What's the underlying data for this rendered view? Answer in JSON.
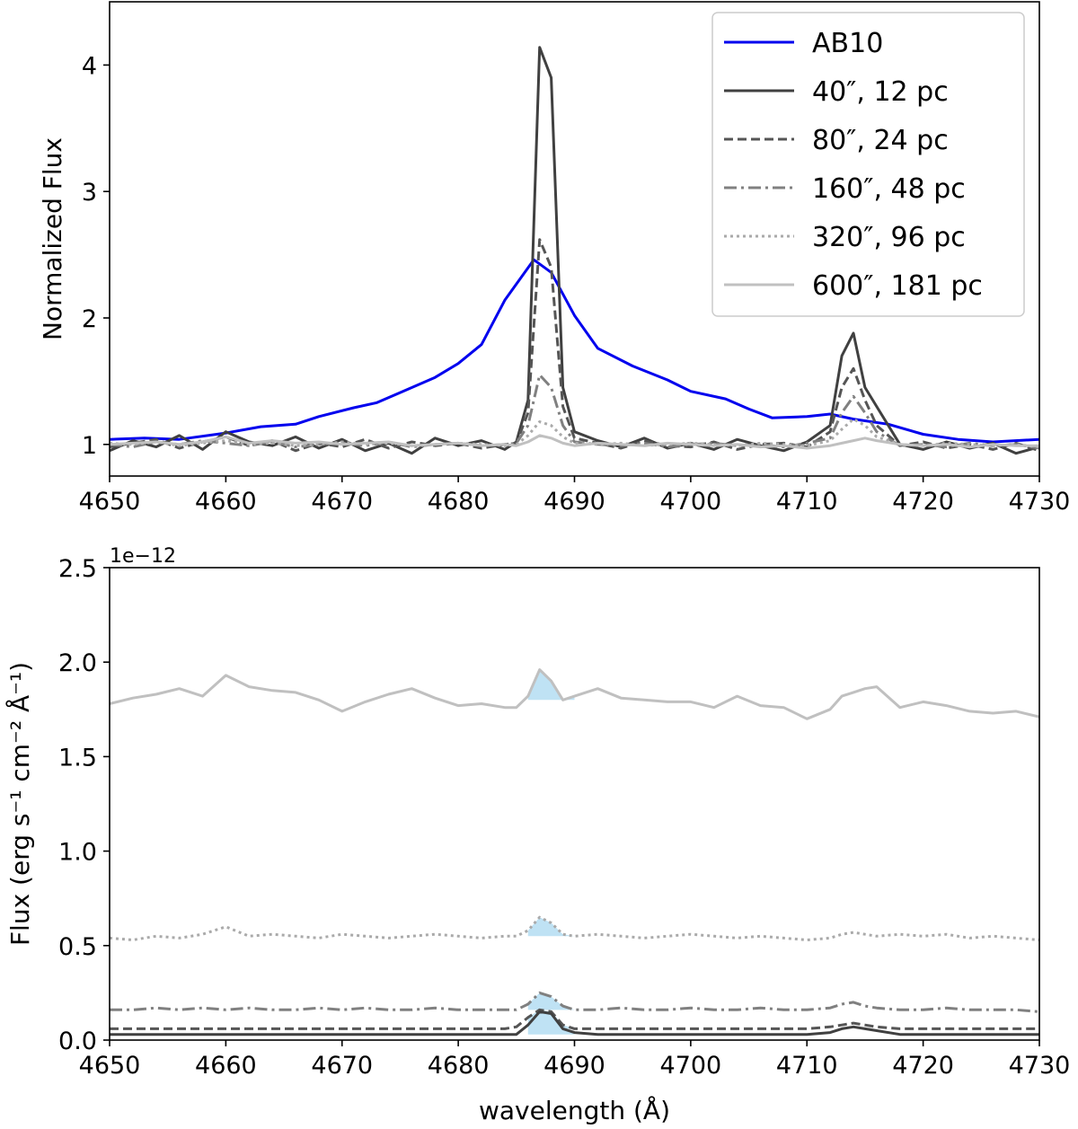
{
  "chart_data": [
    {
      "type": "line",
      "title": "",
      "xlabel": "",
      "ylabel": "Normalized Flux",
      "xlim": [
        4650,
        4730
      ],
      "ylim": [
        0.75,
        4.5
      ],
      "xticks": [
        4650,
        4660,
        4670,
        4680,
        4690,
        4700,
        4710,
        4720,
        4730
      ],
      "yticks": [
        1,
        2,
        3,
        4
      ],
      "ytick_labels": [
        "1",
        "2",
        "3",
        "4"
      ],
      "legend_position": "top-right",
      "series": [
        {
          "name": "AB10",
          "color": "#0000ee",
          "dash": "solid",
          "x": [
            4650,
            4653,
            4656,
            4660,
            4663,
            4666,
            4668,
            4671,
            4673,
            4675,
            4678,
            4680,
            4682,
            4684,
            4686.5,
            4688,
            4690,
            4692,
            4695,
            4698,
            4700,
            4703,
            4705,
            4707,
            4710,
            4712,
            4714,
            4717,
            4720,
            4723,
            4726,
            4730
          ],
          "y": [
            1.04,
            1.05,
            1.04,
            1.09,
            1.14,
            1.16,
            1.22,
            1.29,
            1.33,
            1.41,
            1.53,
            1.64,
            1.79,
            2.14,
            2.46,
            2.36,
            2.02,
            1.76,
            1.62,
            1.51,
            1.42,
            1.36,
            1.28,
            1.21,
            1.22,
            1.24,
            1.2,
            1.16,
            1.08,
            1.04,
            1.02,
            1.04
          ]
        },
        {
          "name": "40″, 12 pc",
          "color": "#404040",
          "dash": "solid",
          "y": [
            0.95,
            1.03,
            0.98,
            1.07,
            0.96,
            1.1,
            1.02,
            0.99,
            1.06,
            0.97,
            1.04,
            0.95,
            1.01,
            0.93,
            1.05,
            0.99,
            1.03,
            0.96,
            1.02,
            1.35,
            4.14,
            3.9,
            1.45,
            1.1,
            1.03,
            0.98,
            1.05,
            0.97,
            1.01,
            0.96,
            1.04,
            0.99,
            0.95,
            1.02,
            1.15,
            1.7,
            1.88,
            1.45,
            1.3,
            1.0,
            0.96,
            1.02,
            0.97,
            1.01,
            0.93,
            0.98
          ]
        },
        {
          "name": "80″, 24 pc",
          "color": "#555555",
          "dash": "dashed",
          "y": [
            0.98,
            1.01,
            1.04,
            0.97,
            1.02,
            1.06,
            0.99,
            1.03,
            0.95,
            1.01,
            0.98,
            1.04,
            0.97,
            1.02,
            0.99,
            1.01,
            0.97,
            1.0,
            1.01,
            1.25,
            2.62,
            2.4,
            1.3,
            1.05,
            1.01,
            0.97,
            1.03,
            0.99,
            0.98,
            1.02,
            0.96,
            1.0,
            1.01,
            0.98,
            1.1,
            1.45,
            1.6,
            1.35,
            1.15,
            0.99,
            1.02,
            0.97,
            1.0,
            0.96,
            1.01,
            0.95
          ]
        },
        {
          "name": "160″, 48 pc",
          "color": "#808080",
          "dash": "dashdot",
          "y": [
            1.0,
            0.98,
            1.02,
            1.0,
            1.03,
            1.01,
            0.99,
            1.02,
            0.98,
            1.0,
            1.01,
            0.99,
            1.02,
            0.98,
            1.0,
            1.01,
            0.99,
            1.0,
            1.01,
            1.15,
            1.55,
            1.45,
            1.15,
            1.02,
            1.0,
            0.99,
            1.01,
            0.98,
            1.0,
            1.01,
            0.99,
            1.0,
            0.98,
            1.01,
            1.05,
            1.25,
            1.38,
            1.25,
            1.1,
            0.99,
            1.0,
            0.98,
            1.01,
            0.99,
            1.0,
            0.97
          ]
        },
        {
          "name": "320″, 96 pc",
          "color": "#aaaaaa",
          "dash": "dotted",
          "y": [
            1.01,
            1.0,
            1.02,
            0.99,
            1.01,
            1.03,
            1.0,
            1.01,
            0.99,
            1.0,
            1.02,
            1.0,
            1.01,
            0.99,
            1.0,
            1.01,
            1.0,
            0.99,
            1.0,
            1.07,
            1.18,
            1.15,
            1.06,
            1.01,
            1.0,
            1.01,
            0.99,
            1.0,
            1.01,
            1.0,
            0.99,
            1.01,
            1.0,
            0.99,
            1.03,
            1.12,
            1.2,
            1.15,
            1.06,
            1.0,
            0.99,
            1.01,
            1.0,
            0.99,
            1.0,
            0.98
          ]
        },
        {
          "name": "600″, 181 pc",
          "color": "#c0c0c0",
          "dash": "solid",
          "y": [
            1.0,
            1.01,
            1.02,
            1.0,
            1.02,
            1.06,
            1.01,
            1.03,
            1.01,
            1.02,
            1.0,
            1.01,
            1.02,
            0.99,
            1.0,
            1.01,
            0.99,
            1.0,
            0.99,
            1.02,
            1.07,
            1.05,
            1.01,
            0.99,
            1.01,
            1.0,
            0.99,
            1.01,
            1.0,
            0.99,
            1.0,
            0.98,
            0.99,
            0.97,
            0.99,
            1.01,
            1.03,
            1.05,
            1.03,
            1.0,
            0.99,
            1.0,
            0.98,
            1.0,
            0.99,
            0.99
          ]
        }
      ]
    },
    {
      "type": "line",
      "title": "",
      "xlabel": "wavelength (Å)",
      "ylabel": "Flux (erg s⁻¹ cm⁻² Å⁻¹)",
      "offset_text": "1e−12",
      "xlim": [
        4650,
        4730
      ],
      "ylim": [
        0.0,
        2.5
      ],
      "xticks": [
        4650,
        4660,
        4670,
        4680,
        4690,
        4700,
        4710,
        4720,
        4730
      ],
      "yticks": [
        0.0,
        0.5,
        1.0,
        1.5,
        2.0,
        2.5
      ],
      "ytick_labels": [
        "0.0",
        "0.5",
        "1.0",
        "1.5",
        "2.0",
        "2.5"
      ],
      "fill_range": [
        4686,
        4690
      ],
      "fill_color": "#bfe2f4",
      "series": [
        {
          "name": "600″, 181 pc",
          "color": "#c0c0c0",
          "dash": "solid",
          "baseline": 1.8,
          "y": [
            1.78,
            1.81,
            1.83,
            1.86,
            1.82,
            1.93,
            1.87,
            1.85,
            1.84,
            1.8,
            1.74,
            1.79,
            1.83,
            1.86,
            1.81,
            1.77,
            1.78,
            1.76,
            1.76,
            1.82,
            1.96,
            1.9,
            1.8,
            1.82,
            1.86,
            1.81,
            1.8,
            1.79,
            1.79,
            1.76,
            1.82,
            1.77,
            1.76,
            1.7,
            1.75,
            1.82,
            1.84,
            1.86,
            1.87,
            1.76,
            1.79,
            1.77,
            1.74,
            1.73,
            1.74,
            1.71
          ]
        },
        {
          "name": "320″, 96 pc",
          "color": "#aaaaaa",
          "dash": "dotted",
          "baseline": 0.55,
          "y": [
            0.54,
            0.53,
            0.55,
            0.54,
            0.56,
            0.6,
            0.55,
            0.56,
            0.55,
            0.54,
            0.56,
            0.55,
            0.54,
            0.55,
            0.56,
            0.55,
            0.54,
            0.55,
            0.55,
            0.58,
            0.65,
            0.62,
            0.56,
            0.55,
            0.56,
            0.55,
            0.54,
            0.55,
            0.56,
            0.55,
            0.54,
            0.55,
            0.54,
            0.53,
            0.54,
            0.56,
            0.57,
            0.56,
            0.55,
            0.56,
            0.55,
            0.56,
            0.54,
            0.55,
            0.54,
            0.53
          ]
        },
        {
          "name": "160″, 48 pc",
          "color": "#808080",
          "dash": "dashdot",
          "baseline": 0.16,
          "y": [
            0.16,
            0.16,
            0.17,
            0.16,
            0.17,
            0.16,
            0.17,
            0.16,
            0.16,
            0.17,
            0.16,
            0.17,
            0.16,
            0.16,
            0.17,
            0.16,
            0.16,
            0.16,
            0.16,
            0.19,
            0.25,
            0.23,
            0.18,
            0.16,
            0.16,
            0.17,
            0.16,
            0.16,
            0.17,
            0.16,
            0.16,
            0.17,
            0.16,
            0.16,
            0.17,
            0.19,
            0.2,
            0.18,
            0.17,
            0.16,
            0.16,
            0.17,
            0.16,
            0.16,
            0.16,
            0.15
          ]
        },
        {
          "name": "80″, 24 pc",
          "color": "#555555",
          "dash": "dashed",
          "baseline": 0.06,
          "y": [
            0.06,
            0.06,
            0.06,
            0.06,
            0.06,
            0.06,
            0.06,
            0.06,
            0.06,
            0.06,
            0.06,
            0.06,
            0.06,
            0.06,
            0.06,
            0.06,
            0.06,
            0.06,
            0.07,
            0.12,
            0.16,
            0.15,
            0.08,
            0.06,
            0.06,
            0.06,
            0.06,
            0.06,
            0.06,
            0.06,
            0.06,
            0.06,
            0.06,
            0.06,
            0.07,
            0.08,
            0.09,
            0.08,
            0.07,
            0.06,
            0.06,
            0.06,
            0.06,
            0.06,
            0.06,
            0.06
          ]
        },
        {
          "name": "40″, 12 pc",
          "color": "#404040",
          "dash": "solid",
          "baseline": 0.03,
          "y": [
            0.03,
            0.03,
            0.03,
            0.03,
            0.03,
            0.03,
            0.03,
            0.03,
            0.03,
            0.03,
            0.03,
            0.03,
            0.03,
            0.03,
            0.03,
            0.03,
            0.03,
            0.03,
            0.03,
            0.08,
            0.15,
            0.14,
            0.06,
            0.04,
            0.03,
            0.03,
            0.03,
            0.03,
            0.03,
            0.03,
            0.03,
            0.03,
            0.03,
            0.03,
            0.04,
            0.06,
            0.07,
            0.06,
            0.05,
            0.03,
            0.03,
            0.03,
            0.03,
            0.03,
            0.03,
            0.03
          ]
        }
      ]
    }
  ],
  "shared_x": [
    4650,
    4652,
    4654,
    4656,
    4658,
    4660,
    4662,
    4664,
    4666,
    4668,
    4670,
    4672,
    4674,
    4676,
    4678,
    4680,
    4682,
    4684,
    4685,
    4686,
    4687,
    4688,
    4689,
    4690,
    4692,
    4694,
    4696,
    4698,
    4700,
    4702,
    4704,
    4706,
    4708,
    4710,
    4712,
    4713,
    4714,
    4715,
    4716,
    4718,
    4720,
    4722,
    4724,
    4726,
    4728,
    4730
  ]
}
